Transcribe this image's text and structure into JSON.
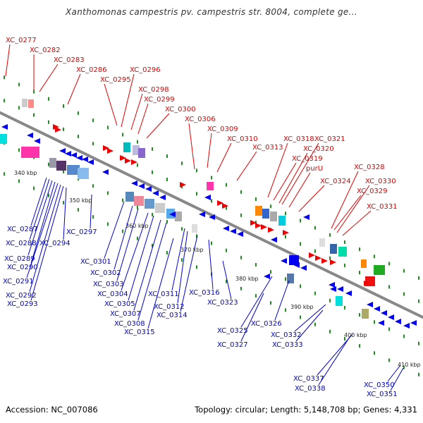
{
  "title": "Xanthomonas campestris pv. campestris str. 8004, complete ge...",
  "footer": {
    "accession": "Accession: NC_007086",
    "summary": "Topology: circular; Length: 5,148,708 bp; Genes: 4,331"
  },
  "colors": {
    "forward": "#ee0000",
    "reverse": "#0000ee",
    "forward_label": "#e00000",
    "reverse_label": "#0000cc",
    "backbone": "#888888",
    "tick": "#228b22"
  },
  "scale_labels": [
    "340 kbp",
    "350 kbp",
    "360 kbp",
    "370 kbp",
    "380 kbp",
    "390 kbp",
    "400 kbp",
    "410 kbp"
  ],
  "forward_genes": [
    "XC_0277",
    "XC_0282",
    "XC_0283",
    "XC_0286",
    "XC_0295",
    "XC_0296",
    "XC_0298",
    "XC_0299",
    "XC_0300",
    "XC_0306",
    "XC_0309",
    "XC_0310",
    "XC_0313",
    "XC_0318",
    "XC_0319",
    "XC_0320",
    "XC_0321",
    "purU",
    "XC_0324",
    "XC_0328",
    "XC_0329",
    "XC_0330",
    "XC_0331"
  ],
  "reverse_genes": [
    "XC_0287",
    "XC_0288",
    "XC_0289",
    "XC_0290",
    "XC_0291",
    "XC_0292",
    "XC_0293",
    "XC_0294",
    "XC_0297",
    "XC_0301",
    "XC_0302",
    "XC_0303",
    "XC_0304",
    "XC_0305",
    "XC_0307",
    "XC_0308",
    "XC_0311",
    "XC_0312",
    "XC_0314",
    "XC_0315",
    "XC_0316",
    "XC_0323",
    "XC_0325",
    "XC_0326",
    "XC_0327",
    "XC_0332",
    "XC_0333",
    "XC_0337",
    "XC_0338",
    "XC_0350",
    "XC_0351"
  ]
}
